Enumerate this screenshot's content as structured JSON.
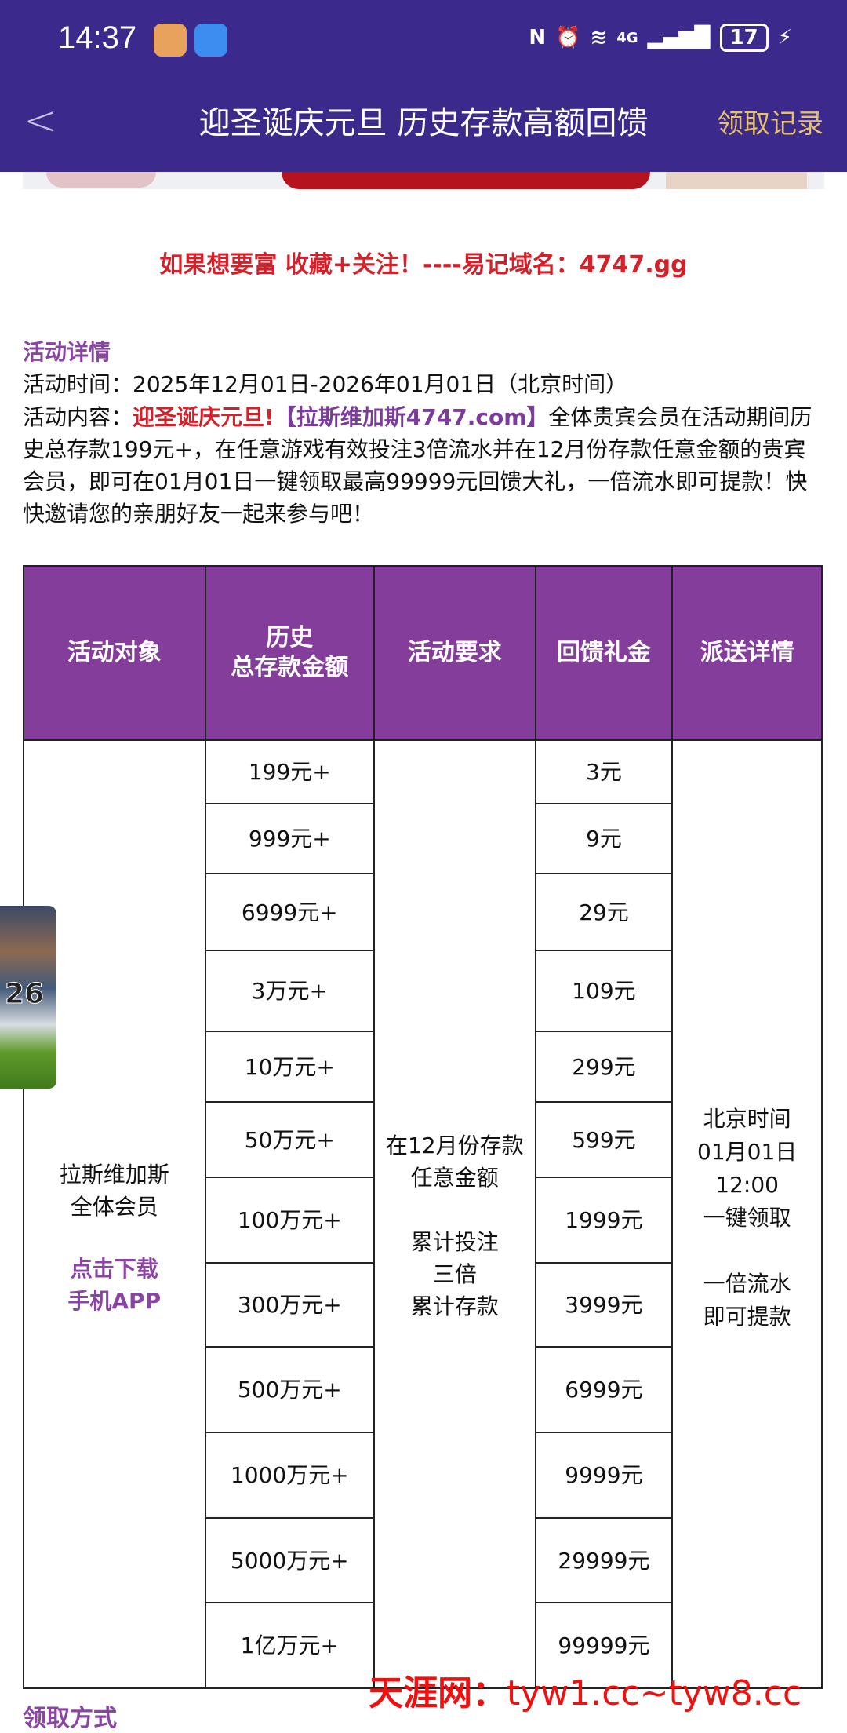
{
  "status_bar": {
    "time": "14:37",
    "network": "4G",
    "battery": "17"
  },
  "header": {
    "title": "迎圣诞庆元旦 历史存款高额回馈",
    "records_label": "领取记录"
  },
  "slogan": "如果想要富 收藏+关注！----易记域名：4747.gg",
  "details": {
    "heading": "活动详情",
    "time_label": "活动时间：",
    "time_value": "2025年12月01日-2026年01月01日（北京时间）",
    "content_label": "活动内容：",
    "content_highlight": "迎圣诞庆元旦!",
    "content_brand": "【拉斯维加斯4747.com】",
    "content_text": "全体贵宾会员在活动期间历史总存款199元+，在任意游戏有效投注3倍流水并在12月份存款任意金额的贵宾会员，即可在01月01日一键领取最高99999元回馈大礼，一倍流水即可提款！快快邀请您的亲朋好友一起来参与吧！"
  },
  "table": {
    "headers": [
      "活动对象",
      "历史\n总存款金额",
      "活动要求",
      "回馈礼金",
      "派送详情"
    ],
    "target": "拉斯维加斯\n全体会员",
    "download": "点击下载\n手机APP",
    "requirement": "在12月份存款\n任意金额\n\n累计投注\n三倍\n累计存款",
    "delivery": "北京时间\n01月01日\n12:00\n一键领取\n\n一倍流水\n即可提款",
    "rows": [
      {
        "deposit": "199元+",
        "bonus": "3元"
      },
      {
        "deposit": "999元+",
        "bonus": "9元"
      },
      {
        "deposit": "6999元+",
        "bonus": "29元"
      },
      {
        "deposit": "3万元+",
        "bonus": "109元"
      },
      {
        "deposit": "10万元+",
        "bonus": "299元"
      },
      {
        "deposit": "50万元+",
        "bonus": "599元"
      },
      {
        "deposit": "100万元+",
        "bonus": "1999元"
      },
      {
        "deposit": "300万元+",
        "bonus": "3999元"
      },
      {
        "deposit": "500万元+",
        "bonus": "6999元"
      },
      {
        "deposit": "1000万元+",
        "bonus": "9999元"
      },
      {
        "deposit": "5000万元+",
        "bonus": "29999元"
      },
      {
        "deposit": "1亿万元+",
        "bonus": "99999元"
      }
    ]
  },
  "floating_ad": {
    "text": "26"
  },
  "watermark": {
    "brand": "天涯网：",
    "domains": "tyw1.cc~tyw8.cc"
  },
  "next_section": "领取方式",
  "colors": {
    "nav": "#3b2a8c",
    "table_header": "#843d9a",
    "accent_red": "#d5202a",
    "accent_purple": "#8a45a3",
    "records": "#e6c06a"
  }
}
